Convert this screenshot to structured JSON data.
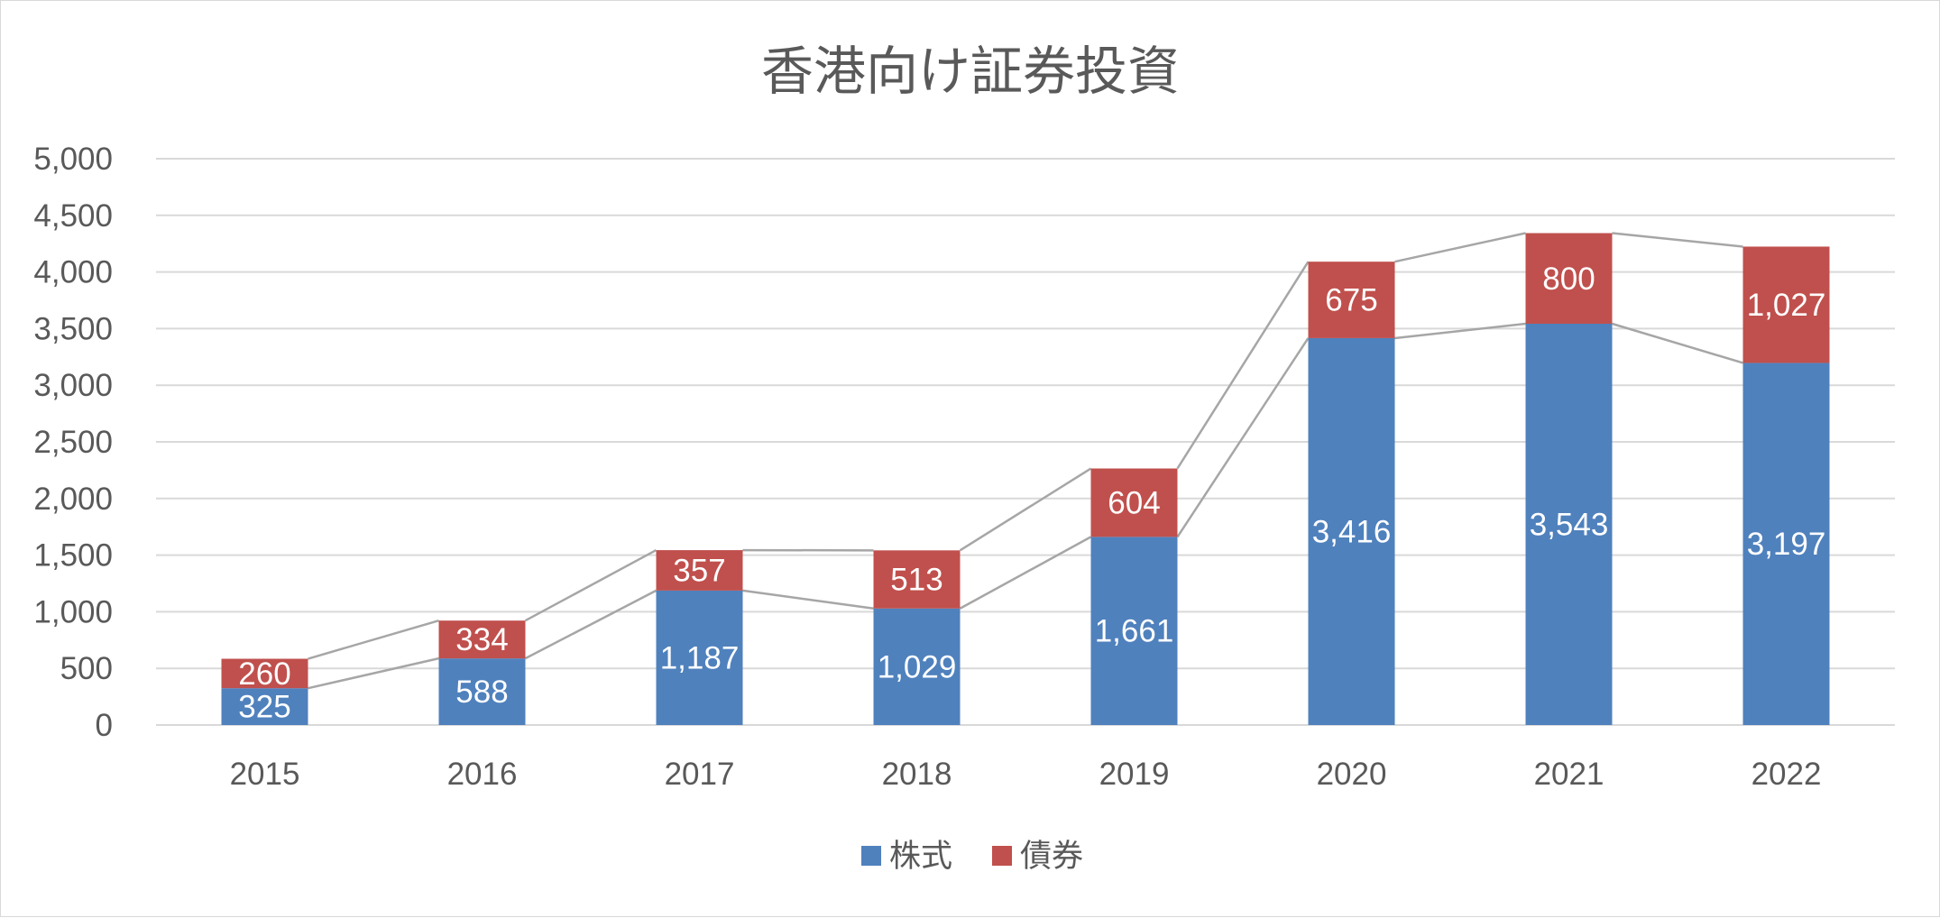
{
  "chart_data": {
    "type": "bar",
    "stacked": true,
    "title": "香港向け証券投資",
    "categories": [
      "2015",
      "2016",
      "2017",
      "2018",
      "2019",
      "2020",
      "2021",
      "2022"
    ],
    "series": [
      {
        "name": "株式",
        "color": "#4f81bd",
        "values": [
          325,
          588,
          1187,
          1029,
          1661,
          3416,
          3543,
          3197
        ]
      },
      {
        "name": "債券",
        "color": "#c0504d",
        "values": [
          260,
          334,
          357,
          513,
          604,
          675,
          800,
          1027
        ]
      }
    ],
    "data_labels": [
      [
        "325",
        "588",
        "1,187",
        "1,029",
        "1,661",
        "3,416",
        "3,543",
        "3,197"
      ],
      [
        "260",
        "334",
        "357",
        "513",
        "604",
        "675",
        "800",
        "1,027"
      ]
    ],
    "y_ticks": [
      "0",
      "500",
      "1,000",
      "1,500",
      "2,000",
      "2,500",
      "3,000",
      "3,500",
      "4,000",
      "4,500",
      "5,000"
    ],
    "y_tick_values": [
      0,
      500,
      1000,
      1500,
      2000,
      2500,
      3000,
      3500,
      4000,
      4500,
      5000
    ],
    "ylim": [
      0,
      5000
    ],
    "xlabel": "",
    "ylabel": "",
    "grid": true,
    "series_lines": true,
    "legend_position": "bottom"
  }
}
